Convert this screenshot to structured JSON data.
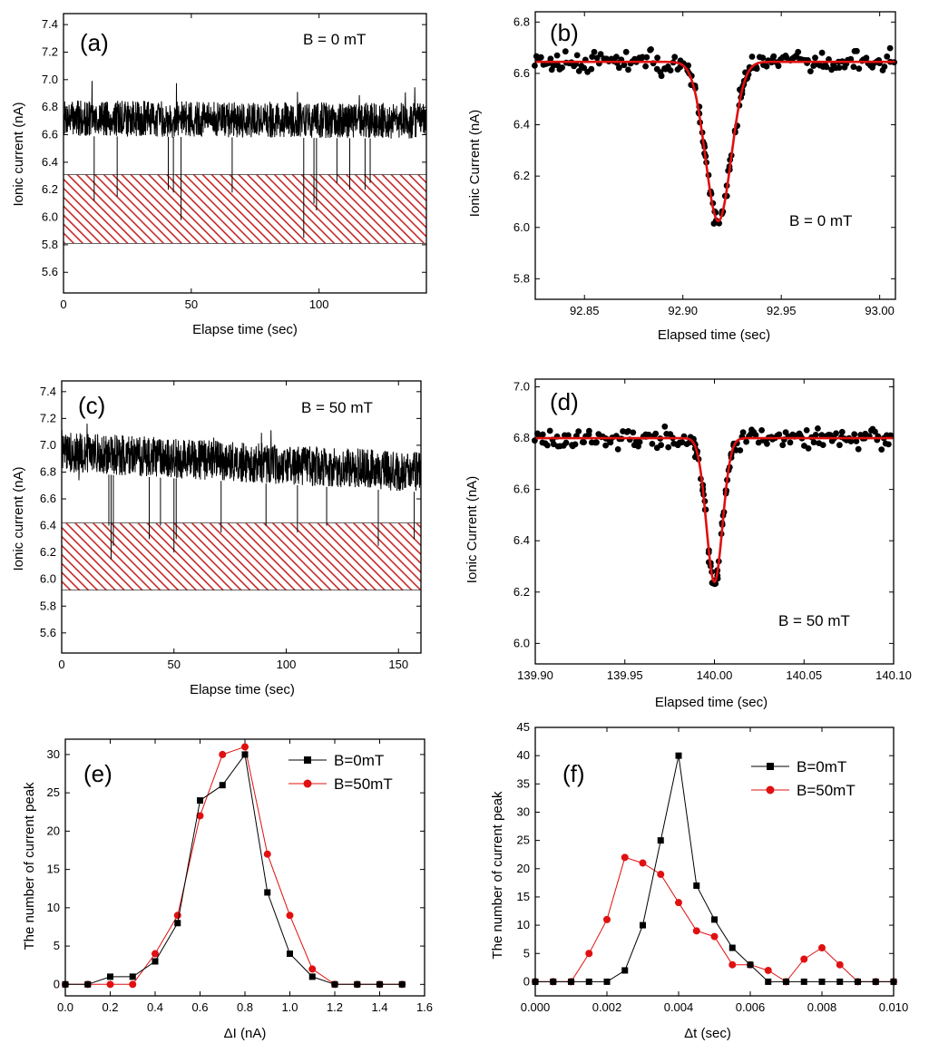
{
  "colors": {
    "black": "#000000",
    "red": "#e01010",
    "hatch": "#c62828"
  },
  "chart_data": [
    {
      "id": "a",
      "type": "line",
      "panel_label": "(a)",
      "annotation": "B = 0 mT",
      "xlabel": "Elapse time (sec)",
      "ylabel": "Ionic current (nA)",
      "xlim": [
        0,
        142
      ],
      "ylim": [
        5.45,
        7.48
      ],
      "xticks": [
        0,
        50,
        100
      ],
      "xtick_labels": [
        "0",
        "50",
        "100"
      ],
      "yticks": [
        5.6,
        5.8,
        6.0,
        6.2,
        6.4,
        6.6,
        6.8,
        7.0,
        7.2,
        7.4
      ],
      "ytick_labels": [
        "5.6",
        "5.8",
        "6.0",
        "6.2",
        "6.4",
        "6.6",
        "6.8",
        "7.0",
        "7.2",
        "7.4"
      ],
      "baseline": {
        "start": 6.72,
        "end": 6.7,
        "noise_band": 0.13
      },
      "events": [
        {
          "x": 12,
          "min": 6.12
        },
        {
          "x": 21,
          "min": 6.15
        },
        {
          "x": 41,
          "min": 6.2
        },
        {
          "x": 43,
          "min": 6.18
        },
        {
          "x": 46,
          "min": 5.98
        },
        {
          "x": 66,
          "min": 6.18
        },
        {
          "x": 94,
          "min": 5.85
        },
        {
          "x": 98,
          "min": 6.1
        },
        {
          "x": 99,
          "min": 6.05
        },
        {
          "x": 107,
          "min": 6.25
        },
        {
          "x": 112,
          "min": 6.2
        },
        {
          "x": 118,
          "min": 6.2
        },
        {
          "x": 120,
          "min": 6.25
        }
      ],
      "band": [
        5.81,
        6.31
      ]
    },
    {
      "id": "b",
      "type": "scatter",
      "panel_label": "(b)",
      "annotation": "B = 0 mT",
      "xlabel": "Elapsed time (sec)",
      "ylabel": "Ionic Current (nA)",
      "xlim": [
        92.825,
        93.008
      ],
      "ylim": [
        5.72,
        6.84
      ],
      "xticks": [
        92.85,
        92.9,
        92.95,
        93.0
      ],
      "xtick_labels": [
        "92.85",
        "92.90",
        "92.95",
        "93.00"
      ],
      "yticks": [
        5.8,
        6.0,
        6.2,
        6.4,
        6.6,
        6.8
      ],
      "ytick_labels": [
        "5.8",
        "6.0",
        "6.2",
        "6.4",
        "6.6",
        "6.8"
      ],
      "fit": {
        "base": 6.645,
        "depth": 0.62,
        "center": 92.918,
        "width": 0.0065
      },
      "points_seed": 11,
      "noise": 0.035
    },
    {
      "id": "c",
      "type": "line",
      "panel_label": "(c)",
      "annotation": "B = 50 mT",
      "xlabel": "Elapse time (sec)",
      "ylabel": "Ionic current (nA)",
      "xlim": [
        0,
        160
      ],
      "ylim": [
        5.45,
        7.48
      ],
      "xticks": [
        0,
        50,
        100,
        150
      ],
      "xtick_labels": [
        "0",
        "50",
        "100",
        "150"
      ],
      "yticks": [
        5.6,
        5.8,
        6.0,
        6.2,
        6.4,
        6.6,
        6.8,
        7.0,
        7.2,
        7.4
      ],
      "ytick_labels": [
        "5.6",
        "5.8",
        "6.0",
        "6.2",
        "6.4",
        "6.6",
        "6.8",
        "7.0",
        "7.2",
        "7.4"
      ],
      "baseline": {
        "start": 6.95,
        "end": 6.8,
        "noise_band": 0.15
      },
      "events": [
        {
          "x": 21,
          "min": 6.4
        },
        {
          "x": 22,
          "min": 6.15
        },
        {
          "x": 23,
          "min": 6.25
        },
        {
          "x": 39,
          "min": 6.3
        },
        {
          "x": 44,
          "min": 6.4
        },
        {
          "x": 50,
          "min": 6.2
        },
        {
          "x": 51,
          "min": 6.3
        },
        {
          "x": 71,
          "min": 6.35
        },
        {
          "x": 91,
          "min": 6.4
        },
        {
          "x": 105,
          "min": 6.35
        },
        {
          "x": 118,
          "min": 6.4
        },
        {
          "x": 141,
          "min": 6.25
        },
        {
          "x": 157,
          "min": 6.3
        }
      ],
      "band": [
        5.92,
        6.42
      ]
    },
    {
      "id": "d",
      "type": "scatter",
      "panel_label": "(d)",
      "annotation": "B = 50 mT",
      "xlabel": "Elapsed time (sec)",
      "ylabel": "Ionic Current (nA)",
      "xlim": [
        139.9,
        140.1
      ],
      "ylim": [
        5.92,
        7.03
      ],
      "xticks": [
        139.9,
        139.95,
        140.0,
        140.05,
        140.1
      ],
      "xtick_labels": [
        "139.90",
        "139.95",
        "140.00",
        "140.05",
        "140.10"
      ],
      "yticks": [
        6.0,
        6.2,
        6.4,
        6.6,
        6.8,
        7.0
      ],
      "ytick_labels": [
        "6.0",
        "6.2",
        "6.4",
        "6.6",
        "6.8",
        "7.0"
      ],
      "fit": {
        "base": 6.8,
        "depth": 0.56,
        "center": 140.0,
        "width": 0.0045
      },
      "points_seed": 23,
      "noise": 0.03
    },
    {
      "id": "e",
      "type": "line",
      "panel_label": "(e)",
      "xlabel": "ΔI (nA)",
      "ylabel": "The number of current peak",
      "xlim": [
        0,
        1.6
      ],
      "ylim": [
        -1.5,
        32
      ],
      "xticks": [
        0,
        0.2,
        0.4,
        0.6,
        0.8,
        1.0,
        1.2,
        1.4,
        1.6
      ],
      "xtick_labels": [
        "0.0",
        "0.2",
        "0.4",
        "0.6",
        "0.8",
        "1.0",
        "1.2",
        "1.4",
        "1.6"
      ],
      "yticks": [
        0,
        5,
        10,
        15,
        20,
        25,
        30
      ],
      "ytick_labels": [
        "0",
        "5",
        "10",
        "15",
        "20",
        "25",
        "30"
      ],
      "x": [
        0,
        0.1,
        0.2,
        0.3,
        0.4,
        0.5,
        0.6,
        0.7,
        0.8,
        0.9,
        1.0,
        1.1,
        1.2,
        1.3,
        1.4,
        1.5
      ],
      "series": [
        {
          "name": "B=0mT",
          "marker": "square",
          "color": "#000000",
          "values": [
            0,
            0,
            1,
            1,
            3,
            8,
            24,
            26,
            30,
            12,
            4,
            1,
            0,
            0,
            0,
            0
          ]
        },
        {
          "name": "B=50mT",
          "marker": "circle",
          "color": "#e01010",
          "values": [
            0,
            0,
            0,
            0,
            4,
            9,
            22,
            30,
            31,
            17,
            9,
            2,
            0,
            0,
            0,
            0
          ]
        }
      ]
    },
    {
      "id": "f",
      "type": "line",
      "panel_label": "(f)",
      "xlabel": "Δt (sec)",
      "ylabel": "The number of current peak",
      "xlim": [
        0,
        0.01
      ],
      "ylim": [
        -2.5,
        45
      ],
      "xticks": [
        0,
        0.002,
        0.004,
        0.006,
        0.008,
        0.01
      ],
      "xtick_labels": [
        "0.000",
        "0.002",
        "0.004",
        "0.006",
        "0.008",
        "0.010"
      ],
      "yticks": [
        0,
        5,
        10,
        15,
        20,
        25,
        30,
        35,
        40,
        45
      ],
      "ytick_labels": [
        "0",
        "5",
        "10",
        "15",
        "20",
        "25",
        "30",
        "35",
        "40",
        "45"
      ],
      "x": [
        0,
        0.0005,
        0.001,
        0.0015,
        0.002,
        0.0025,
        0.003,
        0.0035,
        0.004,
        0.0045,
        0.005,
        0.0055,
        0.006,
        0.0065,
        0.007,
        0.0075,
        0.008,
        0.0085,
        0.009,
        0.0095,
        0.01
      ],
      "series": [
        {
          "name": "B=0mT",
          "marker": "square",
          "color": "#000000",
          "values": [
            0,
            0,
            0,
            0,
            0,
            2,
            10,
            25,
            40,
            17,
            11,
            6,
            3,
            0,
            0,
            0,
            0,
            0,
            0,
            0,
            0
          ]
        },
        {
          "name": "B=50mT",
          "marker": "circle",
          "color": "#e01010",
          "values": [
            0,
            0,
            0,
            5,
            11,
            22,
            21,
            19,
            14,
            9,
            8,
            3,
            3,
            2,
            0,
            4,
            6,
            3,
            0,
            0,
            0
          ]
        }
      ]
    }
  ]
}
